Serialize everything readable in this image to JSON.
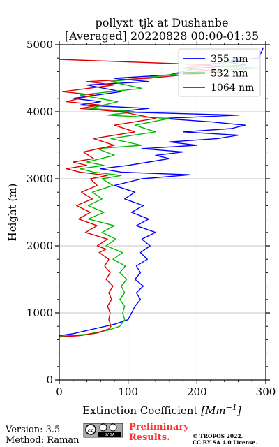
{
  "chart_data": {
    "type": "line",
    "title_line1": "pollyxt_tjk at Dushanbe",
    "title_line2": "[Averaged] 20220828 00:00-01:35",
    "xlabel_prefix": "Extinction Coefficient ",
    "xlabel_unit_base": "Mm",
    "xlabel_unit_exp": "−1",
    "ylabel": "Height (m)",
    "xlim": [
      0,
      300
    ],
    "ylim": [
      0,
      5000
    ],
    "xticks": [
      "0",
      "100",
      "200",
      "300"
    ],
    "yticks": [
      "0",
      "1000",
      "2000",
      "3000",
      "4000",
      "5000"
    ],
    "grid": true,
    "legend_position": "top-right",
    "series": [
      {
        "name": "355 nm",
        "color": "#0000ff",
        "points": [
          [
            0,
            660
          ],
          [
            20,
            690
          ],
          [
            50,
            760
          ],
          [
            80,
            830
          ],
          [
            100,
            900
          ],
          [
            105,
            1000
          ],
          [
            110,
            1100
          ],
          [
            118,
            1200
          ],
          [
            112,
            1300
          ],
          [
            122,
            1400
          ],
          [
            110,
            1500
          ],
          [
            118,
            1600
          ],
          [
            112,
            1700
          ],
          [
            128,
            1800
          ],
          [
            118,
            1900
          ],
          [
            132,
            2000
          ],
          [
            120,
            2100
          ],
          [
            140,
            2200
          ],
          [
            112,
            2300
          ],
          [
            130,
            2400
          ],
          [
            105,
            2500
          ],
          [
            122,
            2600
          ],
          [
            95,
            2700
          ],
          [
            110,
            2800
          ],
          [
            80,
            2900
          ],
          [
            120,
            3000
          ],
          [
            190,
            3060
          ],
          [
            90,
            3100
          ],
          [
            60,
            3150
          ],
          [
            100,
            3200
          ],
          [
            130,
            3250
          ],
          [
            160,
            3300
          ],
          [
            140,
            3350
          ],
          [
            180,
            3400
          ],
          [
            120,
            3450
          ],
          [
            200,
            3500
          ],
          [
            160,
            3550
          ],
          [
            230,
            3600
          ],
          [
            260,
            3650
          ],
          [
            180,
            3700
          ],
          [
            250,
            3750
          ],
          [
            270,
            3800
          ],
          [
            220,
            3850
          ],
          [
            150,
            3900
          ],
          [
            260,
            3950
          ],
          [
            80,
            4000
          ],
          [
            130,
            4050
          ],
          [
            30,
            4100
          ],
          [
            60,
            4150
          ],
          [
            20,
            4200
          ],
          [
            90,
            4300
          ],
          [
            40,
            4400
          ],
          [
            130,
            4450
          ],
          [
            80,
            4500
          ],
          [
            160,
            4550
          ],
          [
            200,
            4650
          ],
          [
            270,
            4700
          ],
          [
            240,
            4750
          ],
          [
            290,
            4800
          ],
          [
            296,
            4950
          ]
        ]
      },
      {
        "name": "532 nm",
        "color": "#00bb00",
        "points": [
          [
            0,
            650
          ],
          [
            40,
            680
          ],
          [
            70,
            740
          ],
          [
            88,
            800
          ],
          [
            95,
            900
          ],
          [
            92,
            1000
          ],
          [
            95,
            1100
          ],
          [
            88,
            1200
          ],
          [
            95,
            1300
          ],
          [
            90,
            1400
          ],
          [
            98,
            1500
          ],
          [
            88,
            1600
          ],
          [
            96,
            1700
          ],
          [
            78,
            1800
          ],
          [
            92,
            1900
          ],
          [
            68,
            2000
          ],
          [
            82,
            2100
          ],
          [
            62,
            2200
          ],
          [
            80,
            2300
          ],
          [
            42,
            2400
          ],
          [
            65,
            2500
          ],
          [
            42,
            2600
          ],
          [
            62,
            2700
          ],
          [
            48,
            2800
          ],
          [
            78,
            2900
          ],
          [
            62,
            3000
          ],
          [
            90,
            3050
          ],
          [
            50,
            3100
          ],
          [
            30,
            3150
          ],
          [
            65,
            3200
          ],
          [
            40,
            3250
          ],
          [
            80,
            3350
          ],
          [
            55,
            3450
          ],
          [
            120,
            3500
          ],
          [
            75,
            3600
          ],
          [
            140,
            3700
          ],
          [
            110,
            3800
          ],
          [
            160,
            3900
          ],
          [
            70,
            3950
          ],
          [
            110,
            4000
          ],
          [
            45,
            4050
          ],
          [
            85,
            4150
          ],
          [
            30,
            4250
          ],
          [
            120,
            4350
          ],
          [
            75,
            4450
          ],
          [
            160,
            4550
          ],
          [
            200,
            4600
          ],
          [
            290,
            4650
          ],
          [
            200,
            4700
          ],
          [
            260,
            4750
          ]
        ]
      },
      {
        "name": "1064 nm",
        "color": "#dd0000",
        "points": [
          [
            0,
            640
          ],
          [
            30,
            660
          ],
          [
            55,
            700
          ],
          [
            72,
            760
          ],
          [
            75,
            800
          ],
          [
            72,
            900
          ],
          [
            74,
            1000
          ],
          [
            70,
            1100
          ],
          [
            76,
            1200
          ],
          [
            72,
            1300
          ],
          [
            78,
            1400
          ],
          [
            68,
            1500
          ],
          [
            74,
            1600
          ],
          [
            66,
            1700
          ],
          [
            72,
            1800
          ],
          [
            58,
            1900
          ],
          [
            68,
            1950
          ],
          [
            55,
            2000
          ],
          [
            70,
            2100
          ],
          [
            38,
            2200
          ],
          [
            55,
            2300
          ],
          [
            28,
            2400
          ],
          [
            45,
            2500
          ],
          [
            25,
            2600
          ],
          [
            48,
            2700
          ],
          [
            32,
            2800
          ],
          [
            55,
            2900
          ],
          [
            45,
            3000
          ],
          [
            70,
            3050
          ],
          [
            30,
            3100
          ],
          [
            10,
            3150
          ],
          [
            40,
            3200
          ],
          [
            20,
            3250
          ],
          [
            50,
            3300
          ],
          [
            35,
            3400
          ],
          [
            80,
            3500
          ],
          [
            50,
            3600
          ],
          [
            110,
            3700
          ],
          [
            80,
            3800
          ],
          [
            140,
            3900
          ],
          [
            90,
            4000
          ],
          [
            30,
            4050
          ],
          [
            60,
            4100
          ],
          [
            10,
            4150
          ],
          [
            50,
            4250
          ],
          [
            5,
            4300
          ],
          [
            80,
            4400
          ],
          [
            40,
            4450
          ],
          [
            130,
            4500
          ],
          [
            180,
            4550
          ],
          [
            240,
            4600
          ],
          [
            180,
            4650
          ],
          [
            220,
            4700
          ],
          [
            0,
            4780
          ]
        ]
      }
    ]
  },
  "footer": {
    "version": "Version: 3.5",
    "method": "Method: Raman",
    "preliminary_line1": "Preliminary",
    "preliminary_line2": "Results.",
    "copyright_line1": "© TROPOS 2022.",
    "copyright_line2": "CC BY SA 4.0 License.",
    "cc_badge_text": "BY  SA",
    "preliminary_color": "#ff3333"
  }
}
